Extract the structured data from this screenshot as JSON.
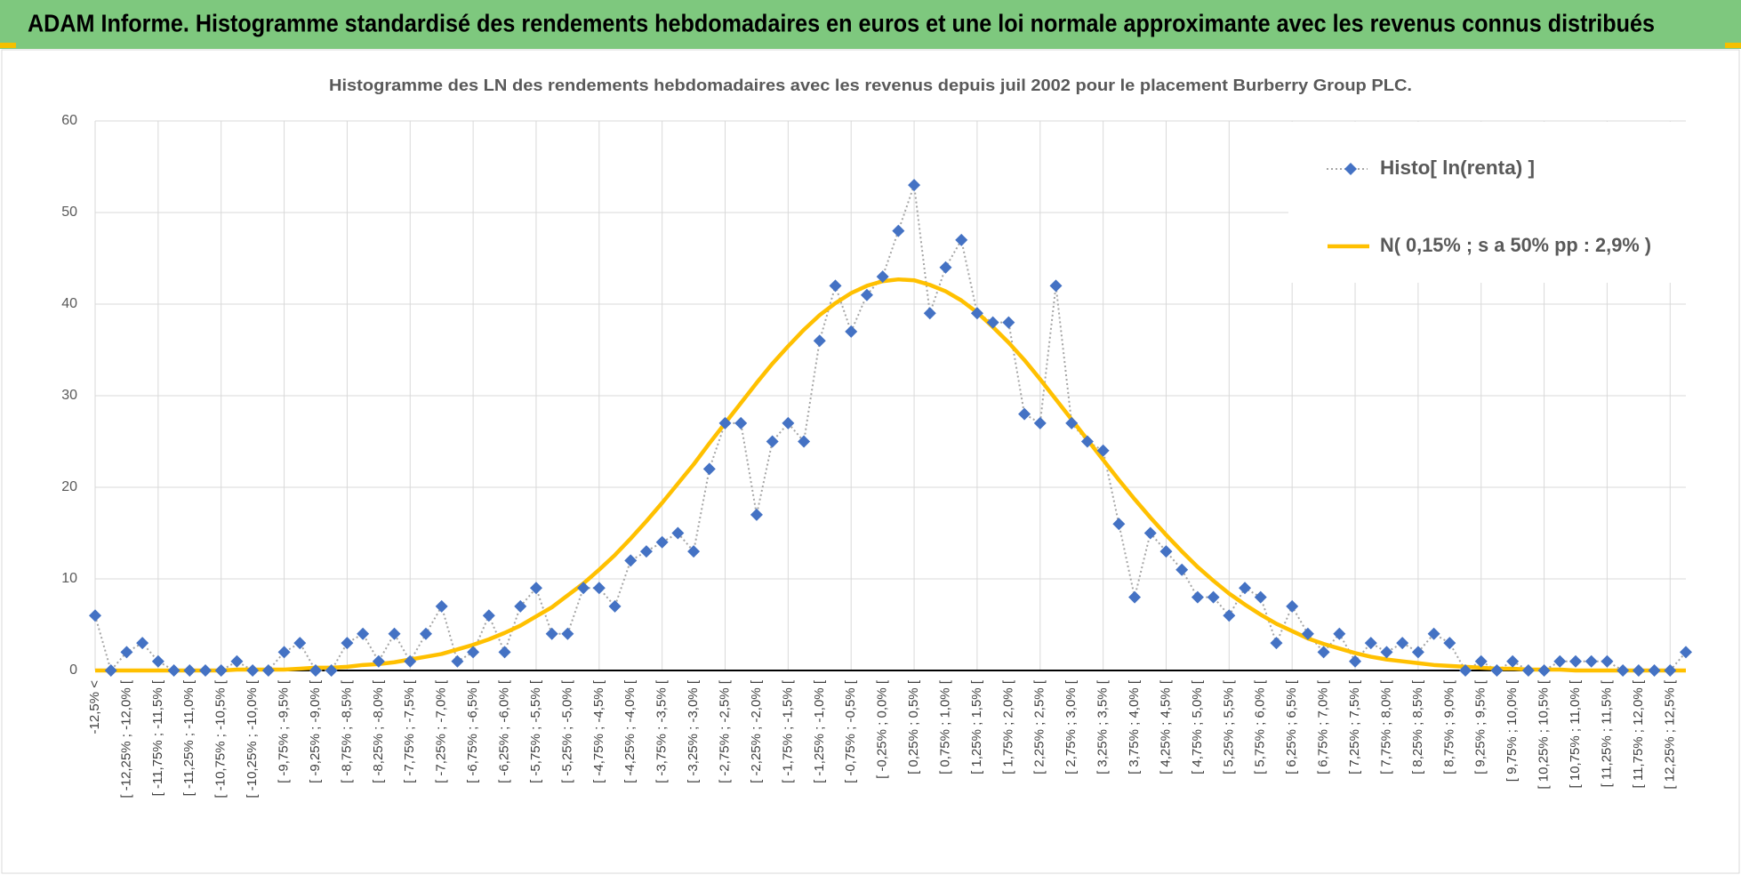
{
  "header": {
    "title": "ADAM Informe. Histogramme standardisé des rendements hebdomadaires en euros et une loi normale approximante avec les revenus connus distribués"
  },
  "chart_data": {
    "type": "line",
    "title": "Histogramme des LN des rendements hebdomadaires avec les revenus depuis juil 2002 pour le placement Burberry Group PLC.",
    "categories": [
      "-12,5% <",
      null,
      "[ -12,25% ; -12,0% [",
      null,
      "[ -11,75% ; -11,5% [",
      null,
      "[ -11,25% ; -11,0% [",
      null,
      "[ -10,75% ; -10,5% [",
      null,
      "[ -10,25% ; -10,0% [",
      null,
      "[ -9,75% ; -9,5% [",
      null,
      "[ -9,25% ; -9,0% [",
      null,
      "[ -8,75% ; -8,5% [",
      null,
      "[ -8,25% ; -8,0% [",
      null,
      "[ -7,75% ; -7,5% [",
      null,
      "[ -7,25% ; -7,0% [",
      null,
      "[ -6,75% ; -6,5% [",
      null,
      "[ -6,25% ; -6,0% [",
      null,
      "[ -5,75% ; -5,5% [",
      null,
      "[ -5,25% ; -5,0% [",
      null,
      "[ -4,75% ; -4,5% [",
      null,
      "[ -4,25% ; -4,0% [",
      null,
      "[ -3,75% ; -3,5% [",
      null,
      "[ -3,25% ; -3,0% [",
      null,
      "[ -2,75% ; -2,5% [",
      null,
      "[ -2,25% ; -2,0% [",
      null,
      "[ -1,75% ; -1,5% [",
      null,
      "[ -1,25% ; -1,0% [",
      null,
      "[ -0,75% ; -0,5% [",
      null,
      "[ -0,25% ; 0,0% [",
      null,
      "[ 0,25% ; 0,5% [",
      null,
      "[ 0,75% ; 1,0% [",
      null,
      "[ 1,25% ; 1,5% [",
      null,
      "[ 1,75% ; 2,0% [",
      null,
      "[ 2,25% ; 2,5% [",
      null,
      "[ 2,75% ; 3,0% [",
      null,
      "[ 3,25% ; 3,5% [",
      null,
      "[ 3,75% ; 4,0% [",
      null,
      "[ 4,25% ; 4,5% [",
      null,
      "[ 4,75% ; 5,0% [",
      null,
      "[ 5,25% ; 5,5% [",
      null,
      "[ 5,75% ; 6,0% [",
      null,
      "[ 6,25% ; 6,5% [",
      null,
      "[ 6,75% ; 7,0% [",
      null,
      "[ 7,25% ; 7,5% [",
      null,
      "[ 7,75% ; 8,0% [",
      null,
      "[ 8,25% ; 8,5% [",
      null,
      "[ 8,75% ; 9,0% [",
      null,
      "[ 9,25% ; 9,5% [",
      null,
      "[ 9,75% ; 10,0% [",
      null,
      "[ 10,25% ; 10,5% [",
      null,
      "[ 10,75% ; 11,0% [",
      null,
      "[ 11,25% ; 11,5% [",
      null,
      "[ 11,75% ; 12,0% [",
      null,
      "[ 12,25% ; 12,5% [",
      null
    ],
    "series": [
      {
        "name": "Histo[ ln(renta) ]",
        "color": "#4472c4",
        "values": [
          6,
          0,
          2,
          3,
          1,
          0,
          0,
          0,
          0,
          1,
          0,
          0,
          2,
          3,
          0,
          0,
          3,
          4,
          1,
          4,
          1,
          4,
          7,
          1,
          2,
          6,
          2,
          7,
          9,
          4,
          4,
          9,
          9,
          7,
          12,
          13,
          14,
          15,
          13,
          22,
          27,
          27,
          17,
          25,
          27,
          25,
          36,
          42,
          37,
          41,
          43,
          48,
          53,
          39,
          44,
          47,
          39,
          38,
          38,
          28,
          27,
          42,
          27,
          25,
          24,
          16,
          8,
          15,
          13,
          11,
          8,
          8,
          6,
          9,
          8,
          3,
          7,
          4,
          2,
          4,
          1,
          3,
          2,
          3,
          2,
          4,
          3,
          0,
          1,
          0,
          1,
          0,
          0,
          1,
          1,
          1,
          1,
          0,
          0,
          0,
          0,
          2
        ]
      },
      {
        "name": "N( 0,15% ; s a 50% pp : 2,9% )",
        "color": "#ffc000",
        "values": [
          0,
          0,
          0,
          0,
          0,
          0,
          0,
          0,
          0,
          0.1,
          0.1,
          0.1,
          0.1,
          0.2,
          0.3,
          0.3,
          0.4,
          0.6,
          0.7,
          0.9,
          1.2,
          1.5,
          1.8,
          2.3,
          2.8,
          3.4,
          4.1,
          4.9,
          5.9,
          6.9,
          8.2,
          9.5,
          11.0,
          12.6,
          14.4,
          16.3,
          18.3,
          20.4,
          22.5,
          24.8,
          27.0,
          29.2,
          31.4,
          33.5,
          35.4,
          37.2,
          38.8,
          40.1,
          41.2,
          42.0,
          42.5,
          42.7,
          42.6,
          42.1,
          41.4,
          40.4,
          39.1,
          37.5,
          35.8,
          33.9,
          31.8,
          29.6,
          27.4,
          25.2,
          23.0,
          20.8,
          18.7,
          16.7,
          14.8,
          13.0,
          11.3,
          9.8,
          8.4,
          7.2,
          6.1,
          5.1,
          4.3,
          3.5,
          2.9,
          2.4,
          1.9,
          1.5,
          1.2,
          1.0,
          0.8,
          0.6,
          0.5,
          0.4,
          0.3,
          0.2,
          0.2,
          0.1,
          0.1,
          0.1,
          0,
          0,
          0,
          0,
          0,
          0,
          0,
          0
        ]
      }
    ],
    "ylim": [
      0,
      60
    ],
    "yticks": [
      0,
      10,
      20,
      30,
      40,
      50,
      60
    ],
    "grid": true,
    "legend": "upper right"
  }
}
